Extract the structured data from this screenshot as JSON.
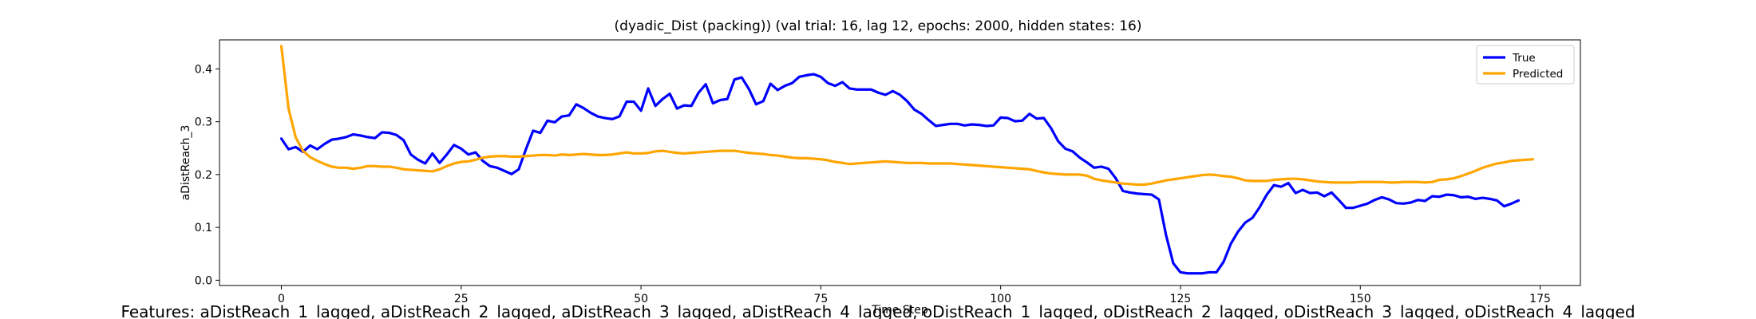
{
  "chart_data": {
    "type": "line",
    "title": "(dyadic_Dist (packing)) (val trial: 16, lag 12, epochs: 2000, hidden states: 16)",
    "xlabel": "Time Step",
    "ylabel": "aDistReach_3",
    "xlim": [
      -8.6,
      180.6
    ],
    "ylim": [
      -0.01,
      0.455
    ],
    "xticks": [
      0,
      25,
      50,
      75,
      100,
      125,
      150,
      175
    ],
    "yticks": [
      0.0,
      0.1,
      0.2,
      0.3,
      0.4
    ],
    "ytick_labels": [
      "0.0",
      "0.1",
      "0.2",
      "0.3",
      "0.4"
    ],
    "legend_position": "top-right",
    "grid": false,
    "footer": "Features: aDistReach_1_lagged, aDistReach_2_lagged, aDistReach_3_lagged, aDistReach_4_lagged, oDistReach_1_lagged, oDistReach_2_lagged, oDistReach_3_lagged, oDistReach_4_lagged",
    "series": [
      {
        "name": "True",
        "color": "#0000ff",
        "values": [
          0.268,
          0.248,
          0.252,
          0.243,
          0.255,
          0.248,
          0.258,
          0.266,
          0.268,
          0.271,
          0.276,
          0.274,
          0.271,
          0.269,
          0.28,
          0.279,
          0.275,
          0.265,
          0.238,
          0.228,
          0.221,
          0.24,
          0.222,
          0.238,
          0.256,
          0.249,
          0.238,
          0.242,
          0.226,
          0.216,
          0.213,
          0.207,
          0.201,
          0.21,
          0.248,
          0.283,
          0.279,
          0.302,
          0.299,
          0.31,
          0.312,
          0.333,
          0.326,
          0.317,
          0.31,
          0.307,
          0.305,
          0.31,
          0.338,
          0.338,
          0.321,
          0.363,
          0.33,
          0.343,
          0.353,
          0.325,
          0.331,
          0.33,
          0.355,
          0.371,
          0.335,
          0.341,
          0.343,
          0.38,
          0.384,
          0.362,
          0.333,
          0.339,
          0.372,
          0.36,
          0.368,
          0.373,
          0.385,
          0.388,
          0.39,
          0.385,
          0.373,
          0.368,
          0.375,
          0.363,
          0.361,
          0.361,
          0.361,
          0.355,
          0.351,
          0.358,
          0.351,
          0.339,
          0.323,
          0.315,
          0.303,
          0.292,
          0.294,
          0.296,
          0.296,
          0.293,
          0.295,
          0.294,
          0.292,
          0.293,
          0.308,
          0.307,
          0.301,
          0.302,
          0.315,
          0.306,
          0.307,
          0.288,
          0.263,
          0.249,
          0.244,
          0.232,
          0.223,
          0.213,
          0.215,
          0.211,
          0.193,
          0.169,
          0.166,
          0.164,
          0.163,
          0.162,
          0.153,
          0.085,
          0.032,
          0.015,
          0.013,
          0.013,
          0.013,
          0.015,
          0.015,
          0.035,
          0.069,
          0.092,
          0.109,
          0.118,
          0.138,
          0.162,
          0.18,
          0.177,
          0.184,
          0.165,
          0.171,
          0.165,
          0.166,
          0.159,
          0.166,
          0.152,
          0.137,
          0.137,
          0.141,
          0.145,
          0.152,
          0.157,
          0.153,
          0.146,
          0.145,
          0.147,
          0.152,
          0.15,
          0.159,
          0.158,
          0.162,
          0.161,
          0.157,
          0.158,
          0.154,
          0.156,
          0.154,
          0.151,
          0.14,
          0.145,
          0.151
        ]
      },
      {
        "name": "Predicted",
        "color": "#ffa500",
        "values": [
          0.443,
          0.325,
          0.27,
          0.245,
          0.233,
          0.226,
          0.22,
          0.215,
          0.213,
          0.213,
          0.211,
          0.213,
          0.216,
          0.216,
          0.215,
          0.215,
          0.213,
          0.21,
          0.209,
          0.208,
          0.207,
          0.206,
          0.21,
          0.216,
          0.221,
          0.224,
          0.225,
          0.228,
          0.232,
          0.234,
          0.235,
          0.235,
          0.234,
          0.234,
          0.235,
          0.236,
          0.237,
          0.237,
          0.236,
          0.238,
          0.237,
          0.238,
          0.239,
          0.238,
          0.237,
          0.237,
          0.238,
          0.24,
          0.242,
          0.24,
          0.24,
          0.241,
          0.244,
          0.245,
          0.243,
          0.241,
          0.24,
          0.241,
          0.242,
          0.243,
          0.244,
          0.245,
          0.245,
          0.245,
          0.243,
          0.241,
          0.24,
          0.239,
          0.237,
          0.236,
          0.234,
          0.232,
          0.231,
          0.231,
          0.23,
          0.229,
          0.227,
          0.224,
          0.222,
          0.22,
          0.221,
          0.222,
          0.223,
          0.224,
          0.225,
          0.224,
          0.223,
          0.222,
          0.222,
          0.222,
          0.221,
          0.221,
          0.221,
          0.221,
          0.22,
          0.219,
          0.218,
          0.217,
          0.216,
          0.215,
          0.214,
          0.213,
          0.212,
          0.211,
          0.21,
          0.207,
          0.204,
          0.202,
          0.201,
          0.2,
          0.2,
          0.2,
          0.198,
          0.192,
          0.189,
          0.187,
          0.185,
          0.183,
          0.182,
          0.181,
          0.181,
          0.183,
          0.186,
          0.189,
          0.191,
          0.193,
          0.195,
          0.197,
          0.199,
          0.2,
          0.199,
          0.197,
          0.196,
          0.193,
          0.189,
          0.188,
          0.188,
          0.188,
          0.19,
          0.191,
          0.192,
          0.192,
          0.191,
          0.189,
          0.187,
          0.186,
          0.185,
          0.185,
          0.185,
          0.185,
          0.186,
          0.186,
          0.186,
          0.186,
          0.185,
          0.185,
          0.186,
          0.186,
          0.186,
          0.185,
          0.186,
          0.19,
          0.191,
          0.193,
          0.197,
          0.202,
          0.207,
          0.213,
          0.217,
          0.221,
          0.223,
          0.226,
          0.227,
          0.228,
          0.229
        ]
      }
    ]
  }
}
